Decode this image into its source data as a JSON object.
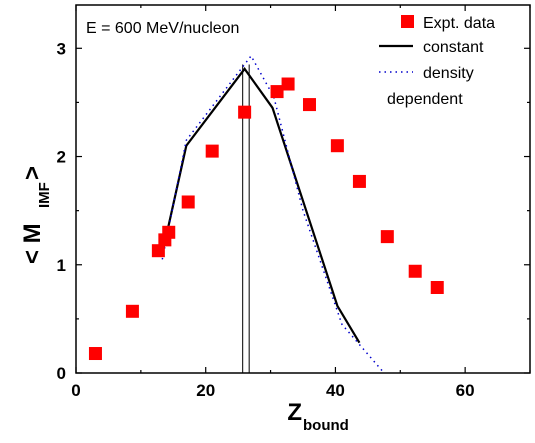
{
  "chart_data": {
    "type": "scatter",
    "annotation": "E = 600 MeV/nucleon",
    "xlabel": {
      "main": "Z",
      "sub": "bound"
    },
    "ylabel": {
      "prefix": "< M",
      "sub": "IMF",
      "suffix": " >"
    },
    "xlim": [
      0,
      70
    ],
    "ylim": [
      0,
      3.4
    ],
    "xticks": [
      "0",
      "20",
      "40",
      "60"
    ],
    "yticks": [
      "0",
      "1",
      "2",
      "3"
    ],
    "xtick_values": [
      0,
      20,
      40,
      60
    ],
    "ytick_values": [
      0,
      1,
      2,
      3
    ],
    "legend": {
      "position": "top-right",
      "expt_label": "Expt. data",
      "constant_label": "constant",
      "density_label_line1": "density",
      "density_label_line2": "dependent"
    },
    "series": [
      {
        "name": "Expt. data",
        "style": "markers",
        "color": "#ff0000",
        "x": [
          3,
          8.7,
          12.7,
          13.7,
          14.3,
          17.3,
          21,
          26,
          31,
          32.7,
          36,
          40.3,
          43.7,
          48,
          52.3,
          55.7
        ],
        "y": [
          0.18,
          0.57,
          1.13,
          1.23,
          1.3,
          1.58,
          2.05,
          2.41,
          2.6,
          2.67,
          2.48,
          2.1,
          1.77,
          1.26,
          0.94,
          0.79
        ]
      },
      {
        "name": "constant",
        "style": "solid",
        "color": "#000000",
        "x": [
          13.3,
          17,
          26,
          30.3,
          40.3,
          43.7
        ],
        "y": [
          1.1,
          2.1,
          2.81,
          2.45,
          0.62,
          0.28
        ]
      },
      {
        "name": "density dependent",
        "style": "dotted",
        "color": "#0000cc",
        "x": [
          13.3,
          17,
          27,
          30.5,
          35,
          41,
          47.5
        ],
        "y": [
          1.05,
          2.15,
          2.93,
          2.55,
          1.5,
          0.45,
          0
        ]
      }
    ],
    "vertical_lines_x": [
      25.7,
      26.7
    ],
    "colors": {
      "markers": "#ff0000",
      "constant": "#000000",
      "density": "#0000cc"
    }
  }
}
